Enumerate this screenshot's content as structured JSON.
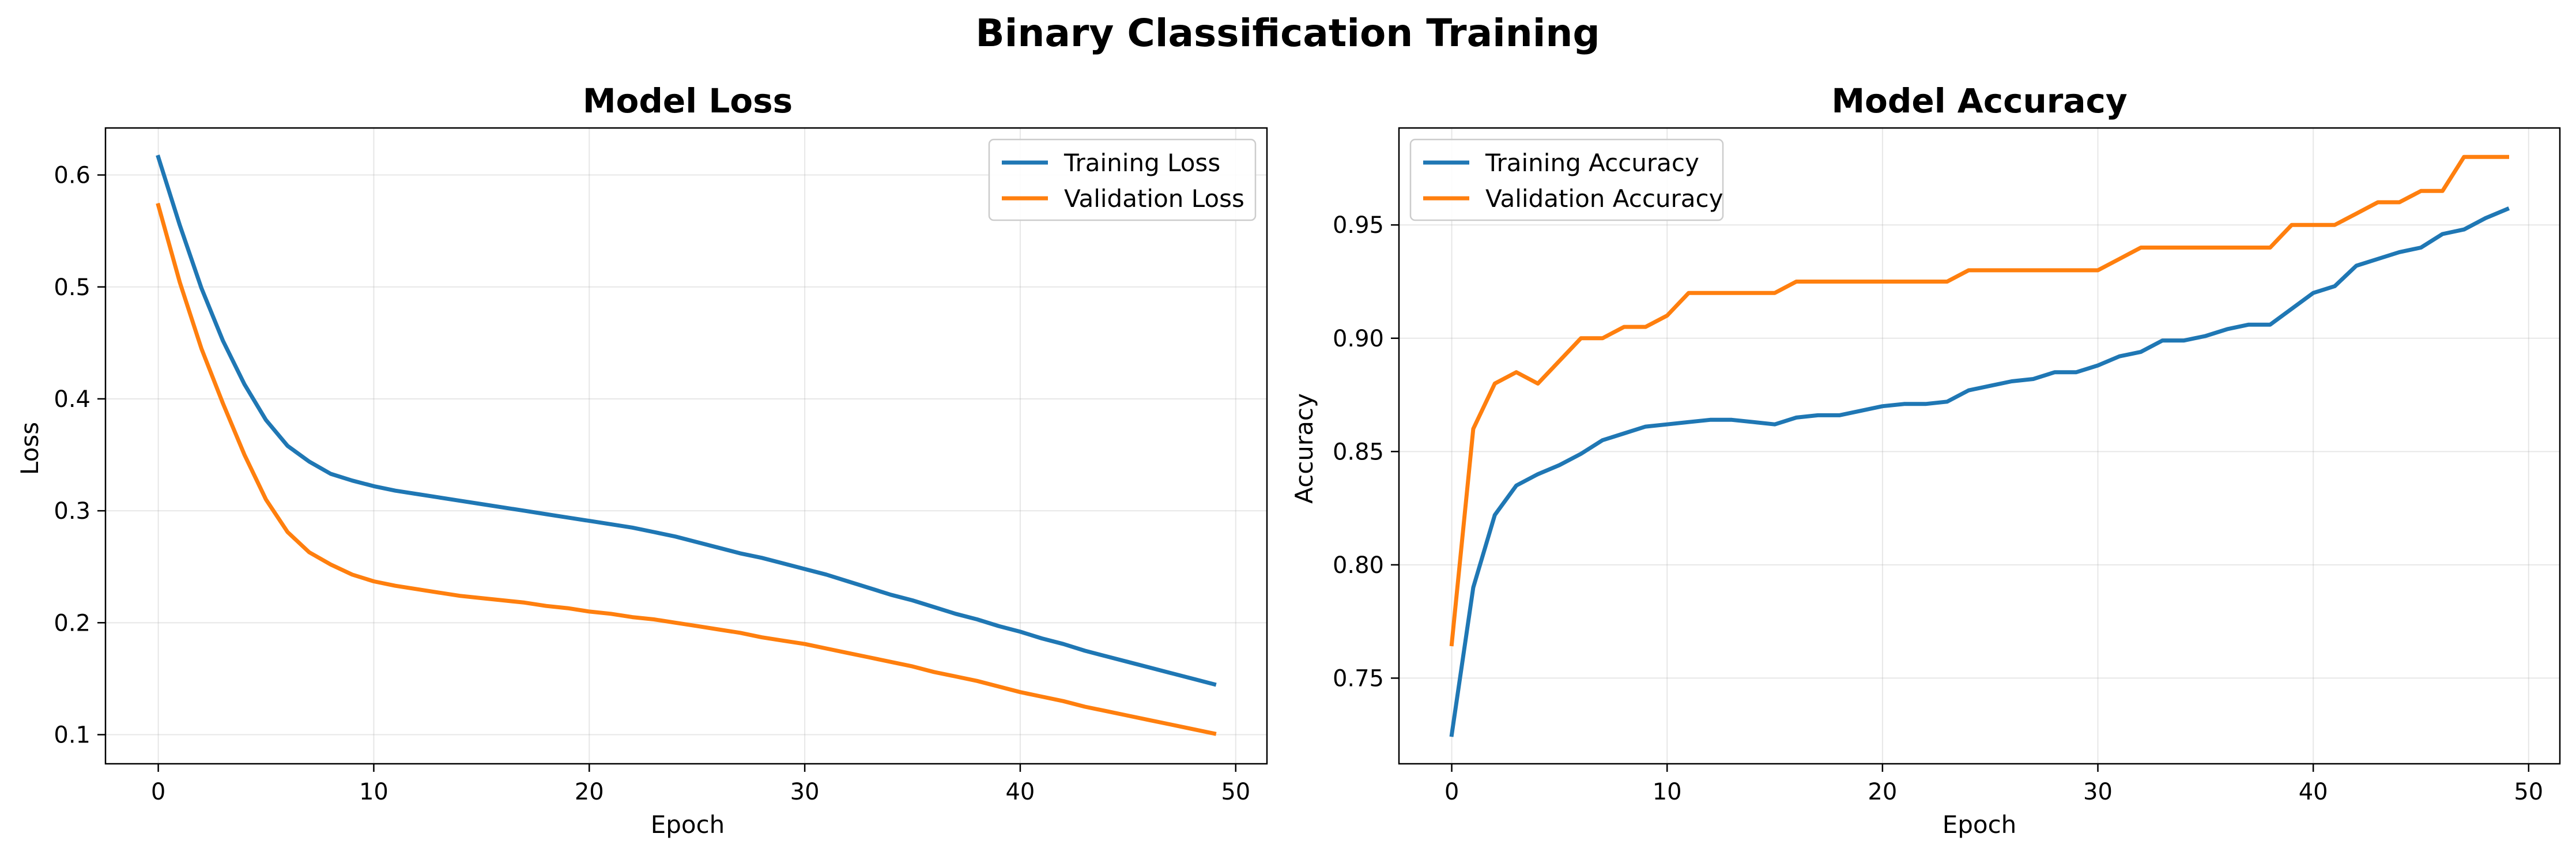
{
  "figure": {
    "title": "Binary Classification Training"
  },
  "chart_data": [
    {
      "type": "line",
      "title": "Model Loss",
      "xlabel": "Epoch",
      "ylabel": "Loss",
      "xlim": [
        -2.45,
        51.45
      ],
      "ylim": [
        0.074,
        0.642
      ],
      "xticks": [
        0,
        10,
        20,
        30,
        40,
        50
      ],
      "yticks": [
        0.1,
        0.2,
        0.3,
        0.4,
        0.5,
        0.6
      ],
      "ytick_labels": [
        "0.1",
        "0.2",
        "0.3",
        "0.4",
        "0.5",
        "0.6"
      ],
      "grid": true,
      "legend_position": "top-right",
      "x": [
        0,
        1,
        2,
        3,
        4,
        5,
        6,
        7,
        8,
        9,
        10,
        11,
        12,
        13,
        14,
        15,
        16,
        17,
        18,
        19,
        20,
        21,
        22,
        23,
        24,
        25,
        26,
        27,
        28,
        29,
        30,
        31,
        32,
        33,
        34,
        35,
        36,
        37,
        38,
        39,
        40,
        41,
        42,
        43,
        44,
        45,
        46,
        47,
        48,
        49
      ],
      "series": [
        {
          "name": "Training Loss",
          "color": "#1f77b4",
          "values": [
            0.616,
            0.555,
            0.499,
            0.452,
            0.413,
            0.381,
            0.358,
            0.344,
            0.333,
            0.327,
            0.322,
            0.318,
            0.315,
            0.312,
            0.309,
            0.306,
            0.303,
            0.3,
            0.297,
            0.294,
            0.291,
            0.288,
            0.285,
            0.281,
            0.277,
            0.272,
            0.267,
            0.262,
            0.258,
            0.253,
            0.248,
            0.243,
            0.237,
            0.231,
            0.225,
            0.22,
            0.214,
            0.208,
            0.203,
            0.197,
            0.192,
            0.186,
            0.181,
            0.175,
            0.17,
            0.165,
            0.16,
            0.155,
            0.15,
            0.145
          ]
        },
        {
          "name": "Validation Loss",
          "color": "#ff7f0e",
          "values": [
            0.573,
            0.504,
            0.445,
            0.396,
            0.35,
            0.31,
            0.281,
            0.263,
            0.252,
            0.243,
            0.237,
            0.233,
            0.23,
            0.227,
            0.224,
            0.222,
            0.22,
            0.218,
            0.215,
            0.213,
            0.21,
            0.208,
            0.205,
            0.203,
            0.2,
            0.197,
            0.194,
            0.191,
            0.187,
            0.184,
            0.181,
            0.177,
            0.173,
            0.169,
            0.165,
            0.161,
            0.156,
            0.152,
            0.148,
            0.143,
            0.138,
            0.134,
            0.13,
            0.125,
            0.121,
            0.117,
            0.113,
            0.109,
            0.105,
            0.101
          ]
        }
      ]
    },
    {
      "type": "line",
      "title": "Model Accuracy",
      "xlabel": "Epoch",
      "ylabel": "Accuracy",
      "xlim": [
        -2.45,
        51.45
      ],
      "ylim": [
        0.7122,
        0.9928
      ],
      "xticks": [
        0,
        10,
        20,
        30,
        40,
        50
      ],
      "yticks": [
        0.75,
        0.8,
        0.85,
        0.9,
        0.95
      ],
      "ytick_labels": [
        "0.75",
        "0.80",
        "0.85",
        "0.90",
        "0.95"
      ],
      "grid": true,
      "legend_position": "top-left",
      "x": [
        0,
        1,
        2,
        3,
        4,
        5,
        6,
        7,
        8,
        9,
        10,
        11,
        12,
        13,
        14,
        15,
        16,
        17,
        18,
        19,
        20,
        21,
        22,
        23,
        24,
        25,
        26,
        27,
        28,
        29,
        30,
        31,
        32,
        33,
        34,
        35,
        36,
        37,
        38,
        39,
        40,
        41,
        42,
        43,
        44,
        45,
        46,
        47,
        48,
        49
      ],
      "series": [
        {
          "name": "Training Accuracy",
          "color": "#1f77b4",
          "values": [
            0.725,
            0.79,
            0.822,
            0.835,
            0.84,
            0.844,
            0.849,
            0.855,
            0.858,
            0.861,
            0.862,
            0.863,
            0.864,
            0.864,
            0.863,
            0.862,
            0.865,
            0.866,
            0.866,
            0.868,
            0.87,
            0.871,
            0.871,
            0.872,
            0.877,
            0.879,
            0.881,
            0.882,
            0.885,
            0.885,
            0.888,
            0.892,
            0.894,
            0.899,
            0.899,
            0.901,
            0.904,
            0.906,
            0.906,
            0.913,
            0.92,
            0.923,
            0.932,
            0.935,
            0.938,
            0.94,
            0.946,
            0.948,
            0.953,
            0.957
          ]
        },
        {
          "name": "Validation Accuracy",
          "color": "#ff7f0e",
          "values": [
            0.765,
            0.86,
            0.88,
            0.885,
            0.88,
            0.89,
            0.9,
            0.9,
            0.905,
            0.905,
            0.91,
            0.92,
            0.92,
            0.92,
            0.92,
            0.92,
            0.925,
            0.925,
            0.925,
            0.925,
            0.925,
            0.925,
            0.925,
            0.925,
            0.93,
            0.93,
            0.93,
            0.93,
            0.93,
            0.93,
            0.93,
            0.935,
            0.94,
            0.94,
            0.94,
            0.94,
            0.94,
            0.94,
            0.94,
            0.95,
            0.95,
            0.95,
            0.955,
            0.96,
            0.96,
            0.965,
            0.965,
            0.98,
            0.98,
            0.98
          ]
        }
      ]
    }
  ]
}
